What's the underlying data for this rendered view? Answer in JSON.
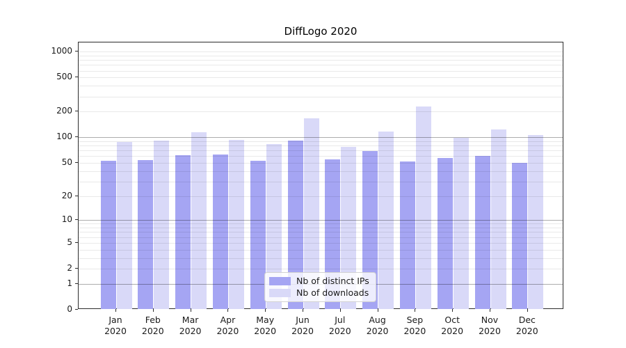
{
  "title": "DiffLogo 2020",
  "legend": {
    "items": [
      {
        "key": "distinct-ips",
        "label": "Nb of distinct IPs",
        "color": "#a5a5f3"
      },
      {
        "key": "downloads",
        "label": "Nb of downloads",
        "color": "#d9d9f8"
      }
    ]
  },
  "chart_data": {
    "type": "bar",
    "title": "DiffLogo 2020",
    "scale": "log1p",
    "categories": [
      "Jan 2020",
      "Feb 2020",
      "Mar 2020",
      "Apr 2020",
      "May 2020",
      "Jun 2020",
      "Jul 2020",
      "Aug 2020",
      "Sep 2020",
      "Oct 2020",
      "Nov 2020",
      "Dec 2020"
    ],
    "series": [
      {
        "name": "Nb of distinct IPs",
        "color": "#a5a5f3",
        "values": [
          53,
          54,
          62,
          63,
          53,
          92,
          55,
          69,
          52,
          57,
          61,
          50
        ]
      },
      {
        "name": "Nb of downloads",
        "color": "#d9d9f8",
        "values": [
          88,
          92,
          115,
          94,
          84,
          167,
          78,
          118,
          229,
          99,
          124,
          107
        ]
      }
    ],
    "xlabel": "",
    "ylabel": "",
    "ylim": [
      0,
      1280
    ],
    "grid": true,
    "legend_position": "lower center",
    "y_ticks": [
      0,
      1,
      2,
      5,
      10,
      20,
      50,
      100,
      200,
      500,
      1000
    ],
    "y_tick_labels": [
      "0",
      "1",
      "2",
      "5",
      "10",
      "20",
      "50",
      "100",
      "200",
      "500",
      "1000"
    ],
    "y_major_gridlines": [
      1,
      10,
      100
    ],
    "y_minor_gridlines": [
      3,
      4,
      6,
      7,
      8,
      9,
      30,
      40,
      60,
      70,
      80,
      90,
      300,
      400,
      600,
      700,
      800,
      900
    ]
  }
}
